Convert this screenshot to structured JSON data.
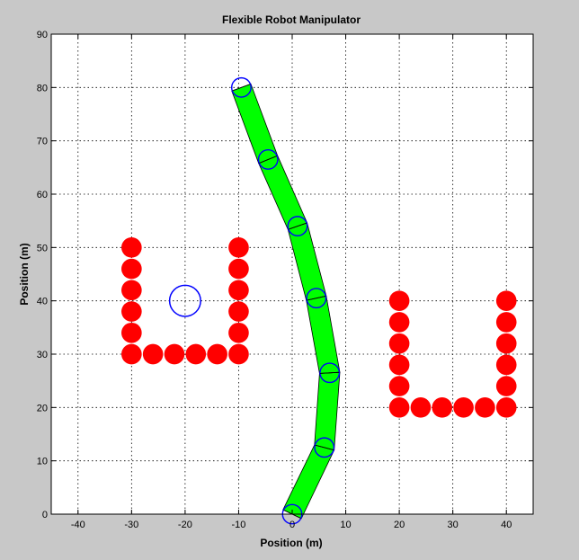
{
  "chart_data": {
    "type": "scatter",
    "title": "Flexible Robot Manipulator",
    "xlabel": "Position (m)",
    "ylabel": "Position (m)",
    "xlim": [
      -45,
      45
    ],
    "ylim": [
      0,
      90
    ],
    "xticks": [
      -40,
      -30,
      -20,
      -10,
      0,
      10,
      20,
      30,
      40
    ],
    "yticks": [
      0,
      10,
      20,
      30,
      40,
      50,
      60,
      70,
      80,
      90
    ],
    "grid": true,
    "colors": {
      "background": "#c8c8c8",
      "plot_area": "#ffffff",
      "obstacle": "#ff0000",
      "link": "#00ff00",
      "joint": "#0000ff",
      "target": "#0000ff"
    },
    "obstacles": {
      "radius": 1.9,
      "points": [
        [
          -30,
          50
        ],
        [
          -30,
          46
        ],
        [
          -30,
          42
        ],
        [
          -30,
          38
        ],
        [
          -30,
          34
        ],
        [
          -30,
          30
        ],
        [
          -26,
          30
        ],
        [
          -22,
          30
        ],
        [
          -18,
          30
        ],
        [
          -14,
          30
        ],
        [
          -10,
          30
        ],
        [
          -10,
          34
        ],
        [
          -10,
          38
        ],
        [
          -10,
          42
        ],
        [
          -10,
          46
        ],
        [
          -10,
          50
        ],
        [
          20,
          40
        ],
        [
          20,
          36
        ],
        [
          20,
          32
        ],
        [
          20,
          28
        ],
        [
          20,
          24
        ],
        [
          20,
          20
        ],
        [
          24,
          20
        ],
        [
          28,
          20
        ],
        [
          32,
          20
        ],
        [
          36,
          20
        ],
        [
          40,
          20
        ],
        [
          40,
          24
        ],
        [
          40,
          28
        ],
        [
          40,
          32
        ],
        [
          40,
          36
        ],
        [
          40,
          40
        ]
      ]
    },
    "target": {
      "x": -20,
      "y": 40,
      "radius": 2.9
    },
    "manipulator": {
      "link_width": 3.8,
      "joint_radius": 1.8,
      "joints": [
        [
          0,
          0
        ],
        [
          6,
          12.5
        ],
        [
          7,
          26.5
        ],
        [
          4.5,
          40.5
        ],
        [
          1,
          54
        ],
        [
          -4.5,
          66.5
        ],
        [
          -9.5,
          80
        ]
      ]
    }
  }
}
